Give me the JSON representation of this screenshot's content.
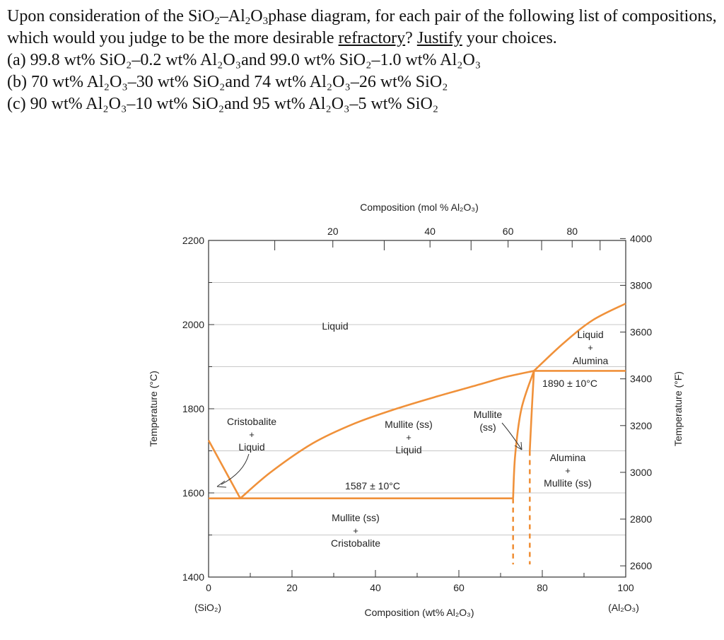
{
  "question": {
    "intro_a": "Upon consideration of the SiO",
    "intro_b": "2",
    "intro_c": "–Al",
    "intro_d": "2",
    "intro_e": "O",
    "intro_f": "3",
    "intro_g": "phase diagram, for each pair of the following list of compositions, which would you judge to be the more desirable ",
    "refractory": "refractory",
    "intro_h": "? ",
    "justify": "Justify",
    "intro_i": " your choices.",
    "item_a": "(a) 99.8 wt% SiO₂–0.2 wt% Al₂O₃and 99.0 wt% SiO₂–1.0 wt% Al₂O₃",
    "item_b": "(b) 70 wt% Al₂O₃–30 wt% SiO₂and 74 wt% Al₂O₃–26 wt% SiO₂",
    "item_c": "(c) 90 wt% Al₂O₃–10 wt% SiO₂and 95 wt% Al₂O₃–5 wt% SiO₂"
  },
  "chart_data": {
    "type": "line",
    "title": "",
    "xlabel_bottom": "Composition (wt% Al₂O₃)",
    "xlabel_top": "Composition (mol % Al₂O₃)",
    "ylabel_left": "Temperature (°C)",
    "ylabel_right": "Temperature (°F)",
    "xlim": [
      0,
      100
    ],
    "ylim_c": [
      1400,
      2200
    ],
    "x_ticks_bottom": [
      0,
      20,
      40,
      60,
      80,
      100
    ],
    "x_tick_labels_bottom": [
      "0",
      "20",
      "40",
      "60",
      "80",
      "100"
    ],
    "x_ticks_top": [
      20,
      40,
      60,
      80
    ],
    "y_ticks_left": [
      1400,
      1600,
      1800,
      2000,
      2200
    ],
    "y_ticks_right_f": [
      2600,
      2800,
      3000,
      3200,
      3400,
      3600,
      3800,
      4000
    ],
    "endpoint_left": "(SiO₂)",
    "endpoint_right": "(Al₂O₃)",
    "phase_boundaries": [
      {
        "name": "cristobalite-liquidus",
        "x": [
          0,
          7.6
        ],
        "y": [
          1725,
          1587
        ]
      },
      {
        "name": "eutectic-isotherm",
        "x": [
          0,
          73
        ],
        "y": [
          1587,
          1587
        ]
      },
      {
        "name": "mullite-liquidus",
        "x": [
          7.6,
          15,
          25,
          35,
          45,
          55,
          65,
          71,
          78
        ],
        "y": [
          1587,
          1650,
          1718,
          1765,
          1800,
          1830,
          1858,
          1875,
          1890
        ]
      },
      {
        "name": "peritectic-isotherm",
        "x": [
          78,
          100
        ],
        "y": [
          1890,
          1890
        ]
      },
      {
        "name": "alumina-liquidus",
        "x": [
          78,
          85,
          92,
          100
        ],
        "y": [
          1890,
          1955,
          2010,
          2050
        ]
      },
      {
        "name": "mullite-solvus-left",
        "x": [
          78,
          75,
          73.5,
          73
        ],
        "y": [
          1890,
          1800,
          1690,
          1587
        ]
      },
      {
        "name": "mullite-solvus-right",
        "x": [
          78,
          77.5,
          77
        ],
        "y": [
          1890,
          1800,
          1700
        ]
      }
    ],
    "dashed_boundaries": [
      {
        "name": "mullite-low-left",
        "x": [
          73,
          73
        ],
        "y": [
          1587,
          1430
        ]
      },
      {
        "name": "mullite-low-right",
        "x": [
          77,
          77
        ],
        "y": [
          1700,
          1430
        ]
      }
    ],
    "phase_labels": {
      "liquid": "Liquid",
      "liquid_alumina_1": "Liquid",
      "liquid_alumina_2": "+",
      "liquid_alumina_3": "Alumina",
      "peritectic": "1890 ± 10°C",
      "cristobalite_1": "Cristobalite",
      "cristobalite_2": "+",
      "cristobalite_3": "Liquid",
      "mullite_liquid_1": "Mullite (ss)",
      "mullite_liquid_2": "+",
      "mullite_liquid_3": "Liquid",
      "mullite_ss_1": "Mullite",
      "mullite_ss_2": "(ss)",
      "alumina_mullite_1": "Alumina",
      "alumina_mullite_2": "+",
      "alumina_mullite_3": "Mullite (ss)",
      "eutectic": "1587 ± 10°C",
      "mullite_crist_1": "Mullite (ss)",
      "mullite_crist_2": "+",
      "mullite_crist_3": "Cristobalite"
    },
    "colors": {
      "boundary": "#f0913a",
      "axis": "#333333",
      "grid": "#c8c8c8"
    },
    "grid": true
  }
}
